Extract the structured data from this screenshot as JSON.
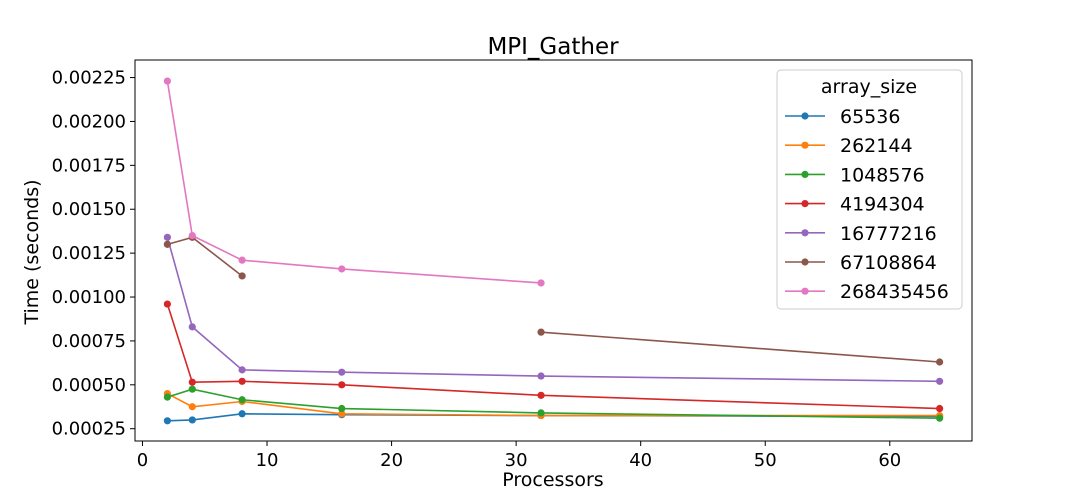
{
  "chart_data": {
    "type": "line",
    "title": "MPI_Gather",
    "xlabel": "Processors",
    "ylabel": "Time (seconds)",
    "xlim": [
      -0.6,
      66.6
    ],
    "ylim": [
      0.00018,
      0.00235
    ],
    "xticks": [
      0,
      10,
      20,
      30,
      40,
      50,
      60
    ],
    "xtick_labels": [
      "0",
      "10",
      "20",
      "30",
      "40",
      "50",
      "60"
    ],
    "yticks": [
      0.00025,
      0.0005,
      0.00075,
      0.001,
      0.00125,
      0.0015,
      0.00175,
      0.002,
      0.00225
    ],
    "ytick_labels": [
      "0.00025",
      "0.00050",
      "0.00075",
      "0.00100",
      "0.00125",
      "0.00150",
      "0.00175",
      "0.00200",
      "0.00225"
    ],
    "grid": false,
    "legend": {
      "title": "array_size",
      "position": "top-right"
    },
    "series": [
      {
        "name": "65536",
        "color": "#1f77b4",
        "points": [
          [
            2,
            0.000295
          ],
          [
            4,
            0.0003
          ],
          [
            8,
            0.000335
          ],
          [
            16,
            0.00033
          ],
          [
            32,
            0.000325
          ],
          [
            64,
            0.00032
          ]
        ]
      },
      {
        "name": "262144",
        "color": "#ff7f0e",
        "points": [
          [
            2,
            0.00045
          ],
          [
            4,
            0.000375
          ],
          [
            8,
            0.000405
          ],
          [
            16,
            0.000335
          ],
          [
            32,
            0.000325
          ],
          [
            64,
            0.000325
          ]
        ]
      },
      {
        "name": "1048576",
        "color": "#2ca02c",
        "points": [
          [
            2,
            0.00043
          ],
          [
            4,
            0.000475
          ],
          [
            8,
            0.000415
          ],
          [
            16,
            0.000365
          ],
          [
            32,
            0.00034
          ],
          [
            64,
            0.00031
          ]
        ]
      },
      {
        "name": "4194304",
        "color": "#d62728",
        "points": [
          [
            2,
            0.00096
          ],
          [
            4,
            0.000515
          ],
          [
            8,
            0.00052
          ],
          [
            16,
            0.0005
          ],
          [
            32,
            0.00044
          ],
          [
            64,
            0.000365
          ]
        ]
      },
      {
        "name": "16777216",
        "color": "#9467bd",
        "points": [
          [
            2,
            0.00134
          ],
          [
            4,
            0.00083
          ],
          [
            8,
            0.000585
          ],
          [
            16,
            0.000572
          ],
          [
            32,
            0.00055
          ],
          [
            64,
            0.00052
          ]
        ]
      },
      {
        "name": "67108864",
        "color": "#8c564b",
        "points": [
          [
            2,
            0.0013
          ],
          [
            4,
            0.00134
          ],
          [
            8,
            0.00112
          ],
          [
            16,
            null
          ],
          [
            32,
            0.0008
          ],
          [
            64,
            0.00063
          ]
        ]
      },
      {
        "name": "268435456",
        "color": "#e377c2",
        "points": [
          [
            2,
            0.00223
          ],
          [
            4,
            0.00135
          ],
          [
            8,
            0.00121
          ],
          [
            16,
            0.00116
          ],
          [
            32,
            0.00108
          ],
          [
            64,
            null
          ]
        ]
      }
    ]
  }
}
